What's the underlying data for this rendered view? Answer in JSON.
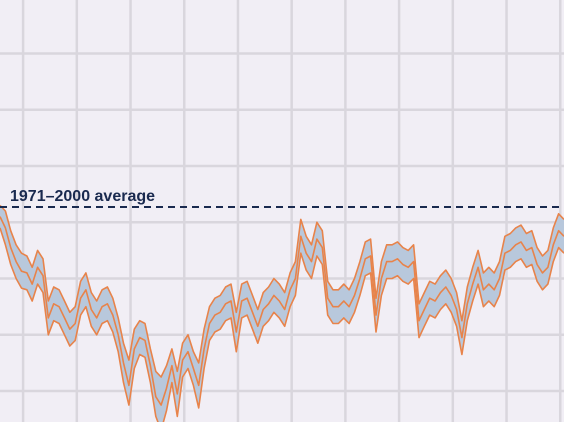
{
  "chart_data": {
    "type": "area",
    "title": "",
    "xlabel": "",
    "ylabel": "",
    "xlim": [
      0,
      105
    ],
    "ylim": [
      0,
      7.5
    ],
    "grid": true,
    "x": [
      0,
      1,
      2,
      3,
      4,
      5,
      6,
      7,
      8,
      9,
      10,
      11,
      12,
      13,
      14,
      15,
      16,
      17,
      18,
      19,
      20,
      21,
      22,
      23,
      24,
      25,
      26,
      27,
      28,
      29,
      30,
      31,
      32,
      33,
      34,
      35,
      36,
      37,
      38,
      39,
      40,
      41,
      42,
      43,
      44,
      45,
      46,
      47,
      48,
      49,
      50,
      51,
      52,
      53,
      54,
      55,
      56,
      57,
      58,
      59,
      60,
      61,
      62,
      63,
      64,
      65,
      66,
      67,
      68,
      69,
      70,
      71,
      72,
      73,
      74,
      75,
      76,
      77,
      78,
      79,
      80,
      81,
      82,
      83,
      84,
      85,
      86,
      87,
      88,
      89,
      90,
      91,
      92,
      93,
      94,
      95,
      96,
      97,
      98,
      99,
      100,
      101,
      102,
      103,
      104,
      105
    ],
    "series": [
      {
        "values": [
          3.65,
          3.45,
          3.1,
          2.85,
          2.68,
          2.65,
          2.45,
          2.75,
          2.6,
          1.85,
          2.1,
          2.05,
          1.85,
          1.65,
          1.75,
          2.2,
          2.35,
          2.0,
          1.85,
          2.05,
          2.1,
          1.9,
          1.55,
          1.05,
          0.65,
          1.3,
          1.5,
          1.45,
          1.0,
          0.45,
          0.3,
          0.6,
          1.0,
          0.5,
          1.1,
          1.25,
          0.95,
          0.65,
          1.3,
          1.75,
          1.9,
          1.95,
          2.1,
          2.15,
          1.6,
          2.15,
          2.2,
          1.95,
          1.7,
          2.0,
          2.1,
          2.25,
          2.15,
          2.0,
          2.35,
          2.55,
          3.3,
          3.0,
          2.85,
          3.25,
          3.1,
          2.2,
          2.05,
          2.05,
          2.15,
          2.05,
          2.25,
          2.55,
          2.9,
          2.95,
          1.9,
          2.55,
          2.85,
          2.85,
          2.9,
          2.8,
          2.75,
          2.85,
          1.8,
          2.0,
          2.2,
          2.15,
          2.3,
          2.4,
          2.25,
          2.0,
          1.5,
          2.1,
          2.45,
          2.75,
          2.35,
          2.45,
          2.35,
          2.55,
          3.0,
          3.05,
          3.15,
          3.2,
          3.05,
          3.1,
          2.8,
          2.65,
          2.75,
          3.15,
          3.4,
          3.3
        ],
        "upper": [
          3.85,
          3.75,
          3.4,
          3.15,
          3.0,
          2.95,
          2.75,
          3.05,
          2.9,
          2.15,
          2.4,
          2.35,
          2.15,
          1.95,
          2.05,
          2.5,
          2.65,
          2.3,
          2.15,
          2.35,
          2.4,
          2.2,
          1.85,
          1.4,
          1.1,
          1.65,
          1.8,
          1.75,
          1.3,
          0.9,
          0.8,
          1.0,
          1.3,
          0.9,
          1.4,
          1.55,
          1.25,
          1.05,
          1.65,
          2.05,
          2.2,
          2.25,
          2.4,
          2.45,
          1.95,
          2.45,
          2.5,
          2.25,
          2.0,
          2.3,
          2.4,
          2.55,
          2.45,
          2.3,
          2.65,
          2.85,
          3.6,
          3.3,
          3.15,
          3.55,
          3.4,
          2.5,
          2.35,
          2.35,
          2.45,
          2.35,
          2.55,
          2.85,
          3.2,
          3.25,
          2.2,
          2.85,
          3.15,
          3.15,
          3.2,
          3.1,
          3.05,
          3.15,
          2.1,
          2.3,
          2.5,
          2.45,
          2.6,
          2.7,
          2.55,
          2.3,
          1.8,
          2.4,
          2.75,
          3.05,
          2.65,
          2.75,
          2.65,
          2.85,
          3.3,
          3.35,
          3.45,
          3.5,
          3.35,
          3.4,
          3.1,
          2.95,
          3.05,
          3.45,
          3.7,
          3.6
        ],
        "lower": [
          3.45,
          3.15,
          2.8,
          2.55,
          2.38,
          2.35,
          2.15,
          2.45,
          2.3,
          1.55,
          1.8,
          1.75,
          1.55,
          1.35,
          1.45,
          1.9,
          2.05,
          1.7,
          1.55,
          1.75,
          1.8,
          1.6,
          1.25,
          0.7,
          0.3,
          0.95,
          1.2,
          1.15,
          0.7,
          0.1,
          -0.15,
          0.2,
          0.7,
          0.1,
          0.8,
          0.95,
          0.65,
          0.25,
          0.95,
          1.45,
          1.6,
          1.65,
          1.8,
          1.85,
          1.25,
          1.85,
          1.9,
          1.65,
          1.4,
          1.7,
          1.8,
          1.95,
          1.85,
          1.7,
          2.05,
          2.25,
          3.0,
          2.7,
          2.55,
          2.95,
          2.8,
          1.9,
          1.75,
          1.75,
          1.85,
          1.75,
          1.95,
          2.25,
          2.6,
          2.65,
          1.6,
          2.25,
          2.55,
          2.55,
          2.6,
          2.5,
          2.45,
          2.55,
          1.5,
          1.7,
          1.9,
          1.85,
          2.0,
          2.1,
          1.95,
          1.7,
          1.2,
          1.8,
          2.15,
          2.45,
          2.05,
          2.15,
          2.05,
          2.25,
          2.7,
          2.75,
          2.85,
          2.9,
          2.75,
          2.8,
          2.5,
          2.35,
          2.45,
          2.85,
          3.1,
          3.0
        ]
      }
    ],
    "reference_line": {
      "value": 3.82,
      "label": "1971–2000 average"
    },
    "colors": {
      "band_fill": "#b8c8dc",
      "band_edge": "#e8834a",
      "reference": "#1a2a4f",
      "grid": "#d9d6dd",
      "background": "#f1eef5"
    }
  }
}
